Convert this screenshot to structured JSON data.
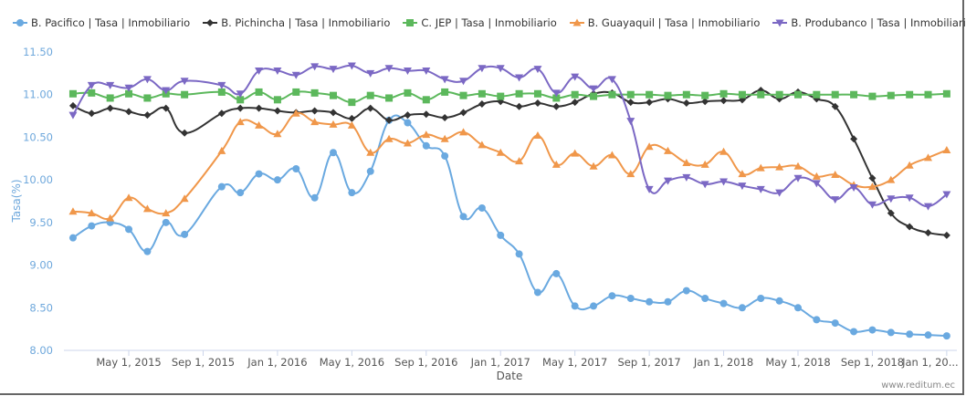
{
  "chart_data": {
    "type": "line",
    "xlabel": "Date",
    "ylabel": "Tasa(%)",
    "ylim": [
      8.0,
      11.5
    ],
    "yticks": [
      "8.00",
      "8.50",
      "9.00",
      "9.50",
      "10.00",
      "10.50",
      "11.00",
      "11.50"
    ],
    "xticks": [
      {
        "date": "2015-05",
        "label": "May 1, 2015"
      },
      {
        "date": "2015-09",
        "label": "Sep 1, 2015"
      },
      {
        "date": "2016-01",
        "label": "Jan 1, 2016"
      },
      {
        "date": "2016-05",
        "label": "May 1, 2016"
      },
      {
        "date": "2016-09",
        "label": "Sep 1, 2016"
      },
      {
        "date": "2017-01",
        "label": "Jan 1, 2017"
      },
      {
        "date": "2017-05",
        "label": "May 1, 2017"
      },
      {
        "date": "2017-09",
        "label": "Sep 1, 2017"
      },
      {
        "date": "2018-01",
        "label": "Jan 1, 2018"
      },
      {
        "date": "2018-05",
        "label": "May 1, 2018"
      },
      {
        "date": "2018-09",
        "label": "Sep 1, 2018"
      },
      {
        "date": "2019-01",
        "label": "Jan 1, 20..."
      }
    ],
    "grid": false,
    "legend_position": "top-left",
    "x": [
      "2015-02",
      "2015-03",
      "2015-04",
      "2015-05",
      "2015-06",
      "2015-07",
      "2015-08",
      "2015-10",
      "2015-11",
      "2015-12",
      "2016-01",
      "2016-02",
      "2016-03",
      "2016-04",
      "2016-05",
      "2016-06",
      "2016-07",
      "2016-08",
      "2016-09",
      "2016-10",
      "2016-11",
      "2016-12",
      "2017-01",
      "2017-02",
      "2017-03",
      "2017-04",
      "2017-05",
      "2017-06",
      "2017-07",
      "2017-08",
      "2017-09",
      "2017-10",
      "2017-11",
      "2017-12",
      "2018-01",
      "2018-02",
      "2018-03",
      "2018-04",
      "2018-05",
      "2018-06",
      "2018-07",
      "2018-08",
      "2018-09",
      "2018-10",
      "2018-11",
      "2018-12",
      "2019-01"
    ],
    "series": [
      {
        "name": "B. Pacifico | Tasa | Inmobiliario",
        "color": "#6aa9e0",
        "marker": "circle",
        "values": [
          9.32,
          9.46,
          9.5,
          9.42,
          9.16,
          9.5,
          9.36,
          9.92,
          9.85,
          10.07,
          10.0,
          10.13,
          9.79,
          10.32,
          9.85,
          10.1,
          10.7,
          10.67,
          10.4,
          10.28,
          9.57,
          9.67,
          9.35,
          9.13,
          8.68,
          8.9,
          8.52,
          8.52,
          8.64,
          8.61,
          8.57,
          8.57,
          8.7,
          8.61,
          8.55,
          8.5,
          8.61,
          8.58,
          8.5,
          8.36,
          8.32,
          8.22,
          8.24,
          8.21,
          8.19,
          8.18,
          8.17
        ]
      },
      {
        "name": "B. Pichincha | Tasa | Inmobiliario",
        "color": "#333333",
        "marker": "diamond",
        "values": [
          10.87,
          10.78,
          10.84,
          10.8,
          10.76,
          10.84,
          10.55,
          10.78,
          10.84,
          10.84,
          10.81,
          10.79,
          10.81,
          10.79,
          10.72,
          10.84,
          10.7,
          10.76,
          10.77,
          10.73,
          10.79,
          10.89,
          10.92,
          10.86,
          10.9,
          10.86,
          10.91,
          11.01,
          11.02,
          10.91,
          10.91,
          10.95,
          10.9,
          10.92,
          10.93,
          10.94,
          11.05,
          10.95,
          11.03,
          10.95,
          10.86,
          10.48,
          10.02,
          9.61,
          9.45,
          9.38,
          9.35
        ]
      },
      {
        "name": "C. JEP | Tasa | Inmobiliario",
        "color": "#5cb85c",
        "marker": "square",
        "values": [
          11.01,
          11.02,
          10.96,
          11.01,
          10.96,
          11.01,
          11.0,
          11.03,
          10.94,
          11.03,
          10.94,
          11.03,
          11.02,
          10.99,
          10.91,
          10.99,
          10.96,
          11.02,
          10.94,
          11.03,
          10.99,
          11.01,
          10.98,
          11.01,
          11.01,
          10.96,
          11.0,
          10.98,
          11.0,
          11.0,
          11.0,
          10.99,
          11.0,
          10.99,
          11.01,
          11.0,
          11.0,
          11.0,
          11.0,
          11.0,
          11.0,
          11.0,
          10.98,
          10.99,
          11.0,
          11.0,
          11.01
        ]
      },
      {
        "name": "B. Guayaquil | Tasa | Inmobiliario",
        "color": "#f0974a",
        "marker": "triangle",
        "values": [
          9.63,
          9.61,
          9.55,
          9.79,
          9.66,
          9.61,
          9.78,
          10.34,
          10.68,
          10.64,
          10.54,
          10.78,
          10.68,
          10.65,
          10.64,
          10.32,
          10.48,
          10.43,
          10.53,
          10.48,
          10.56,
          10.41,
          10.32,
          10.22,
          10.52,
          10.18,
          10.31,
          10.16,
          10.29,
          10.07,
          10.39,
          10.34,
          10.2,
          10.18,
          10.33,
          10.07,
          10.14,
          10.15,
          10.16,
          10.04,
          10.06,
          9.94,
          9.92,
          10.0,
          10.17,
          10.26,
          10.35
        ]
      },
      {
        "name": "B. Produbanco | Tasa | Inmobiliario",
        "color": "#7b68c4",
        "marker": "triangle-down",
        "values": [
          10.76,
          11.11,
          11.11,
          11.08,
          11.18,
          11.05,
          11.16,
          11.11,
          11.01,
          11.28,
          11.28,
          11.23,
          11.33,
          11.3,
          11.34,
          11.25,
          11.31,
          11.28,
          11.28,
          11.18,
          11.16,
          11.31,
          11.31,
          11.2,
          11.3,
          11.02,
          11.21,
          11.07,
          11.18,
          10.69,
          9.89,
          9.99,
          10.03,
          9.95,
          9.98,
          9.93,
          9.89,
          9.85,
          10.02,
          9.96,
          9.77,
          9.91,
          9.71,
          9.78,
          9.79,
          9.69,
          9.83
        ]
      }
    ]
  },
  "credit": "www.reditum.ec"
}
